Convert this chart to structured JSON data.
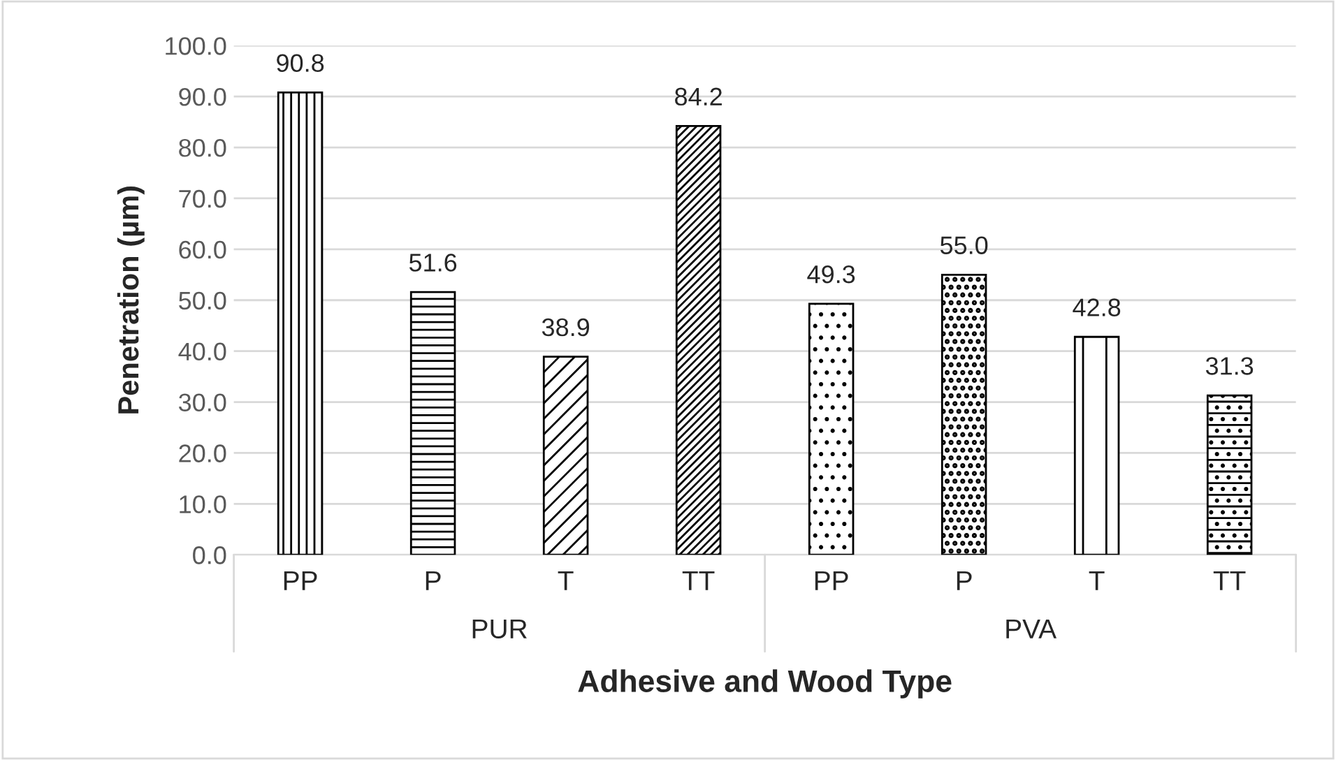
{
  "chart_data": {
    "type": "bar",
    "xlabel": "Adhesive and Wood Type",
    "ylabel": "Penetration (µm)",
    "categories": [
      "PP",
      "P",
      "T",
      "TT",
      "PP",
      "P",
      "T",
      "TT"
    ],
    "values": [
      90.8,
      51.6,
      38.9,
      84.2,
      49.3,
      55.0,
      42.8,
      31.3
    ],
    "value_labels": [
      "90.8",
      "51.6",
      "38.9",
      "84.2",
      "49.3",
      "55.0",
      "42.8",
      "31.3"
    ],
    "annotations": [
      "PUR",
      "PVA"
    ],
    "ylim": [
      0,
      100
    ],
    "yticks": [
      {
        "value": 0,
        "label": "0.0"
      },
      {
        "value": 10,
        "label": "10.0"
      },
      {
        "value": 20,
        "label": "20.0"
      },
      {
        "value": 30,
        "label": "30.0"
      },
      {
        "value": 40,
        "label": "40.0"
      },
      {
        "value": 50,
        "label": "50.0"
      },
      {
        "value": 60,
        "label": "60.0"
      },
      {
        "value": 70,
        "label": "70.0"
      },
      {
        "value": 80,
        "label": "80.0"
      },
      {
        "value": 90,
        "label": "90.0"
      },
      {
        "value": 100,
        "label": "100.0"
      }
    ],
    "grid": "y"
  }
}
